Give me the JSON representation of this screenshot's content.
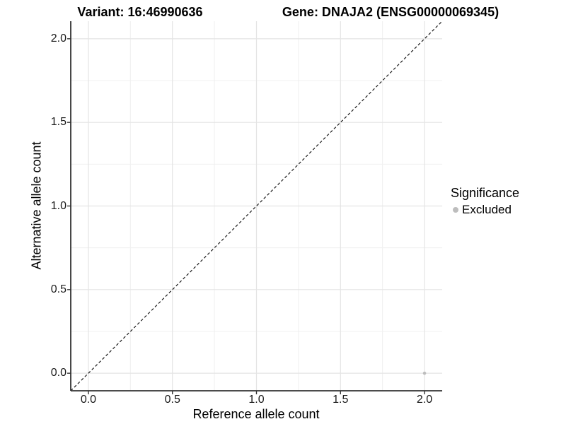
{
  "titles": {
    "variant": "Variant: 16:46990636",
    "gene": "Gene: DNAJA2 (ENSG00000069345)"
  },
  "legend": {
    "title": "Significance",
    "items": [
      {
        "label": "Excluded",
        "color": "#bdbdbd",
        "marker": "circle-icon"
      }
    ]
  },
  "chart_data": {
    "type": "scatter",
    "title": "Variant: 16:46990636 | Gene: DNAJA2 (ENSG00000069345)",
    "xlabel": "Reference allele count",
    "ylabel": "Alternative allele count",
    "xlim": [
      -0.105,
      2.105
    ],
    "ylim": [
      -0.105,
      2.105
    ],
    "x_ticks": [
      0.0,
      0.5,
      1.0,
      1.5,
      2.0
    ],
    "x_tick_labels": [
      "0.0",
      "0.5",
      "1.0",
      "1.5",
      "2.0"
    ],
    "y_ticks": [
      0.0,
      0.5,
      1.0,
      1.5,
      2.0
    ],
    "y_tick_labels": [
      "0.0",
      "0.5",
      "1.0",
      "1.5",
      "2.0"
    ],
    "minor_ticks_x": [
      0.25,
      0.75,
      1.25,
      1.75
    ],
    "minor_ticks_y": [
      0.25,
      0.75,
      1.25,
      1.75
    ],
    "grid": "major+minor",
    "legend_position": "right",
    "series": [
      {
        "name": "Excluded",
        "color": "#bdbdbd",
        "points": [
          {
            "x": 2.0,
            "y": 0.0
          }
        ]
      }
    ],
    "reference_line": {
      "type": "identity",
      "style": "dashed",
      "slope": 1,
      "intercept": 0,
      "color": "#1a1a1a"
    }
  },
  "colors": {
    "axis_line": "#333333",
    "grid_major": "#e4e4e4",
    "grid_minor": "#f0f0f0",
    "tick_mark": "#333333",
    "point": "#bdbdbd"
  }
}
